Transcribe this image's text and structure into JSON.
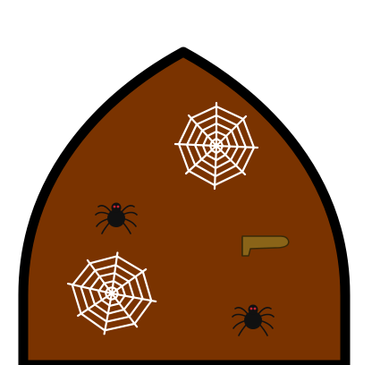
{
  "scene": {
    "kind": "arched-doorway-interior",
    "background_color": "#ffffff",
    "door_fill": "#7a3300",
    "door_outline": "#000000",
    "web_color": "#ffffff",
    "spider_body_color": "#111111",
    "spider_eye_color": "#cc2233",
    "boot_color": "#8a6418",
    "boot_sole_color": "#3a2a08"
  },
  "objects": [
    {
      "id": "web-1",
      "type": "cobweb-icon"
    },
    {
      "id": "web-2",
      "type": "cobweb-icon"
    },
    {
      "id": "spider-1",
      "type": "spider-icon"
    },
    {
      "id": "spider-2",
      "type": "spider-icon"
    },
    {
      "id": "boot-1",
      "type": "boot-icon"
    }
  ]
}
